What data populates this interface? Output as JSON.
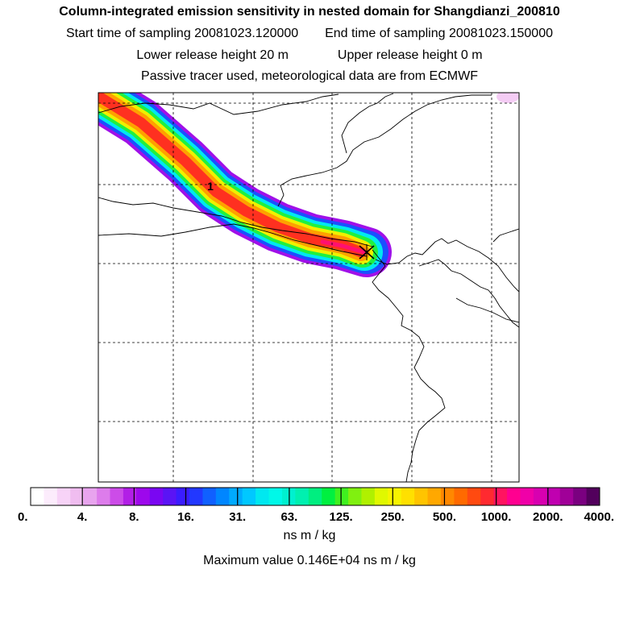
{
  "header": {
    "title": "Column-integrated emission sensitivity in nested domain for Shangdianzi_200810",
    "start_label": "Start time of sampling",
    "start_value": "20081023.120000",
    "end_label": "End time of sampling",
    "end_value": "20081023.150000",
    "lower_label": "Lower release height",
    "lower_value": "20 m",
    "upper_label": "Upper release height",
    "upper_value": "0 m",
    "note": "Passive tracer used, meteorological data are from ECMWF"
  },
  "map": {
    "station_marker": "x-cross-marker",
    "track_label": "1"
  },
  "legend": {
    "ticks": [
      "0.",
      "4.",
      "8.",
      "16.",
      "31.",
      "63.",
      "125.",
      "250.",
      "500.",
      "1000.",
      "2000.",
      "4000."
    ],
    "colors": [
      "#ffffff",
      "#fcecfc",
      "#f7d3f7",
      "#f0bdf0",
      "#e8a4ee",
      "#dd7ceb",
      "#cc4ce8",
      "#b21fe6",
      "#9d08ec",
      "#7a06f2",
      "#5a14f5",
      "#3a1cff",
      "#2238ff",
      "#1060ff",
      "#0086ff",
      "#00aaff",
      "#00c8ff",
      "#00e8f0",
      "#00f8e8",
      "#00f0d0",
      "#00f0b0",
      "#00ee80",
      "#00f040",
      "#40f020",
      "#80f010",
      "#b0f000",
      "#e0f800",
      "#f8f400",
      "#ffe000",
      "#ffc400",
      "#ffa800",
      "#ff8800",
      "#ff6a00",
      "#ff4a10",
      "#ff2a30",
      "#ff1460",
      "#ff0090",
      "#f000a8",
      "#d800b0",
      "#c000b0",
      "#a00098",
      "#7a0080",
      "#52005c"
    ],
    "units": "ns m / kg",
    "maximum_label": "Maximum value",
    "maximum_value": "0.146E+04",
    "maximum_units": "ns m / kg"
  }
}
